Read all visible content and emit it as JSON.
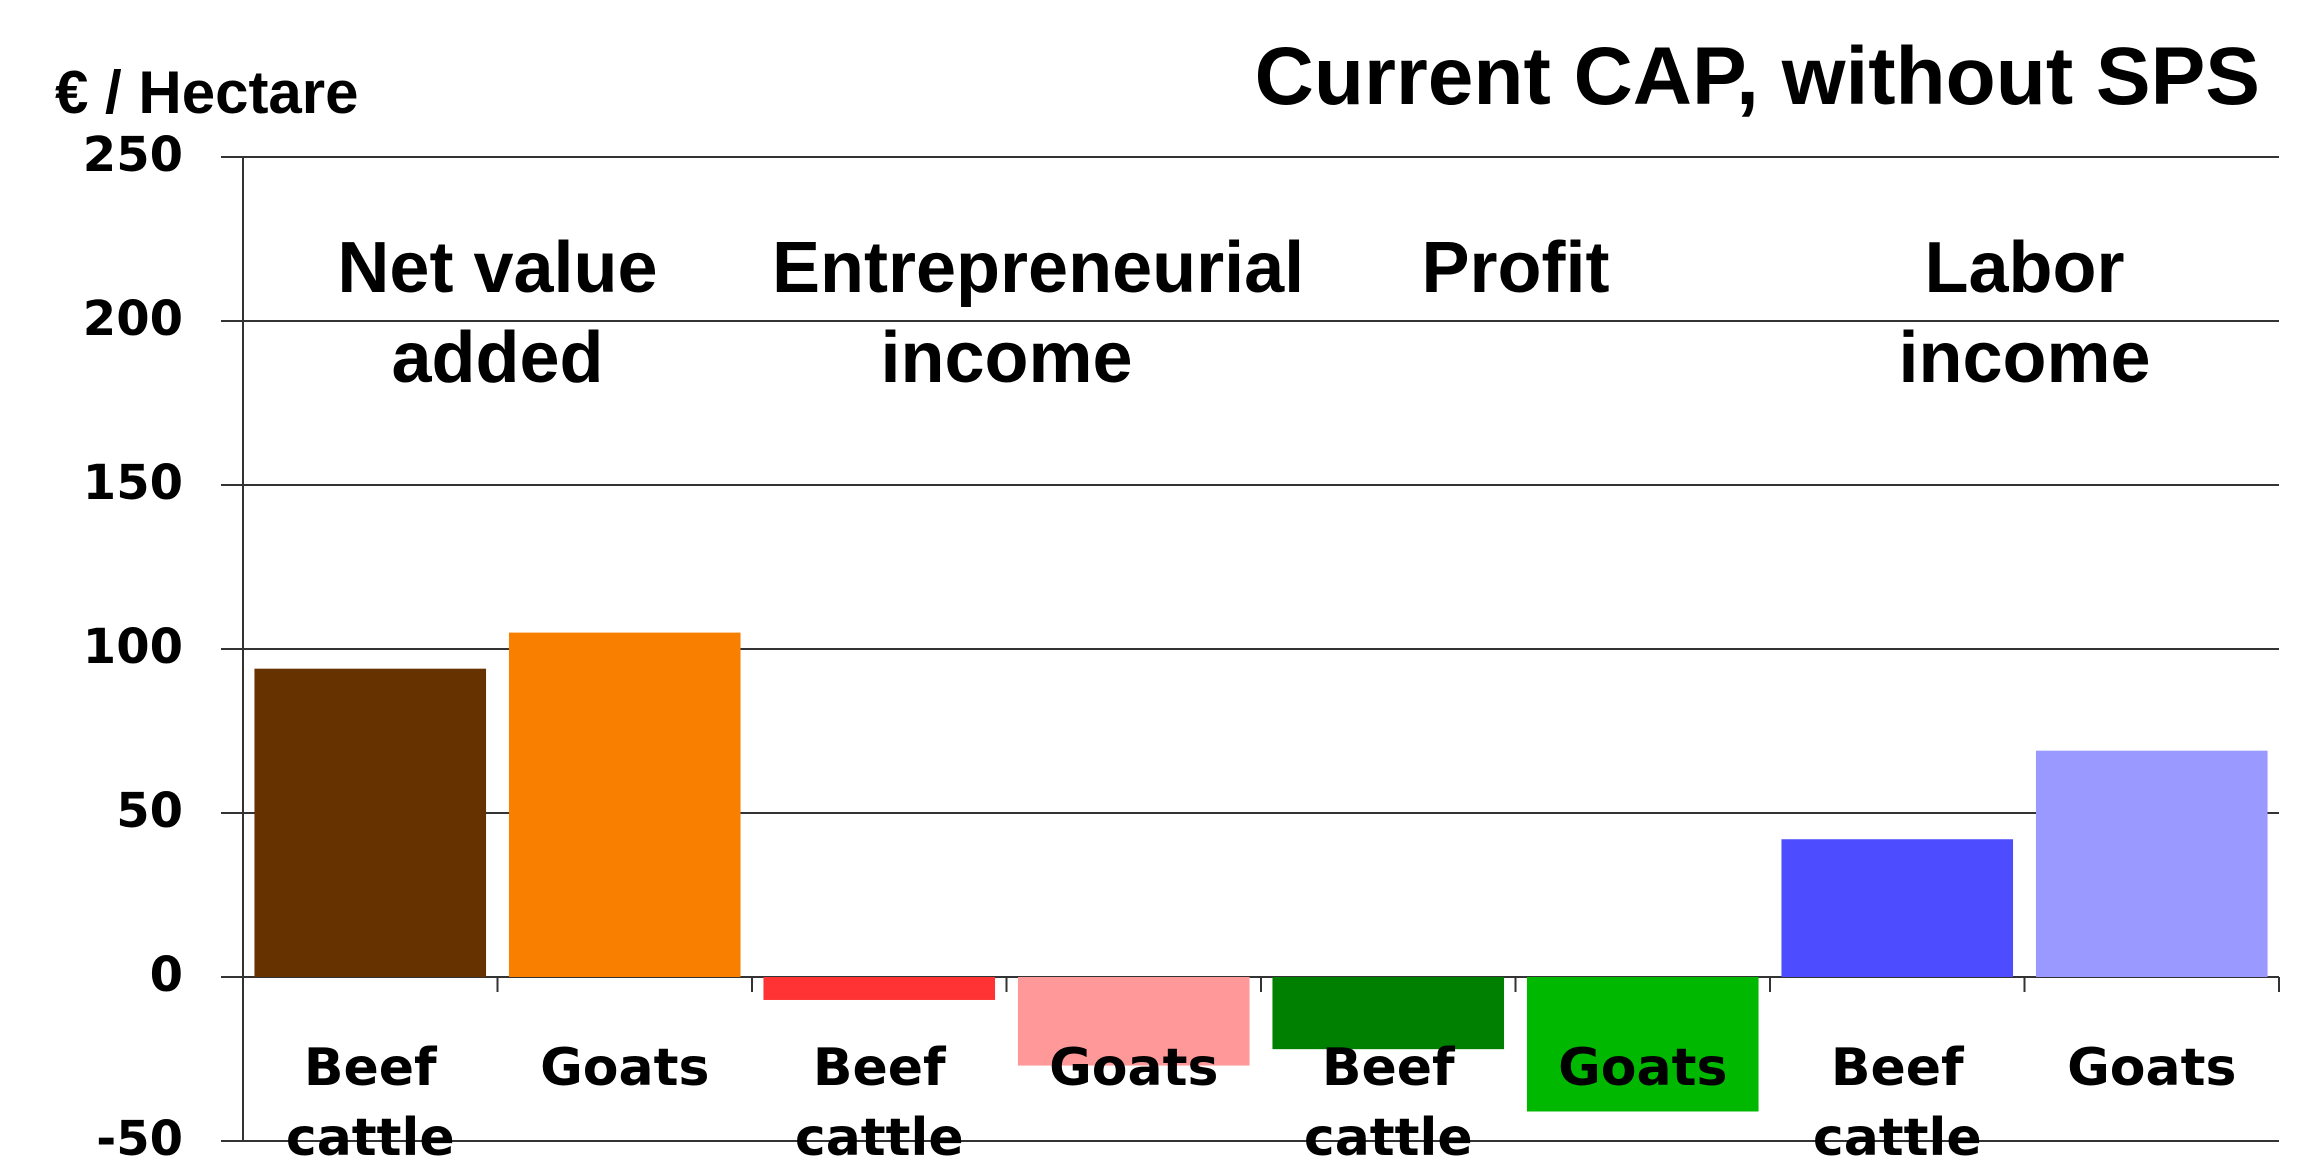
{
  "chart_data": {
    "type": "bar",
    "title": "Current CAP, without SPS",
    "y_label": "€ / Hectare",
    "groups": [
      "Net value added",
      "Entrepreneurial income",
      "Profit",
      "Labor income"
    ],
    "categories": [
      "Beef cattle",
      "Goats",
      "Beef cattle",
      "Goats",
      "Beef cattle",
      "Goats",
      "Beef cattle",
      "Goats"
    ],
    "values": [
      94,
      105,
      -7,
      -27,
      -22,
      -41,
      42,
      69
    ],
    "colors": [
      "#663300",
      "#f97f00",
      "#ff3333",
      "#ff9999",
      "#008000",
      "#00b800",
      "#4d4dff",
      "#9999ff"
    ],
    "ylim": [
      -50,
      250
    ],
    "yticks": [
      -50,
      0,
      50,
      100,
      150,
      200,
      250
    ],
    "grid": true
  }
}
